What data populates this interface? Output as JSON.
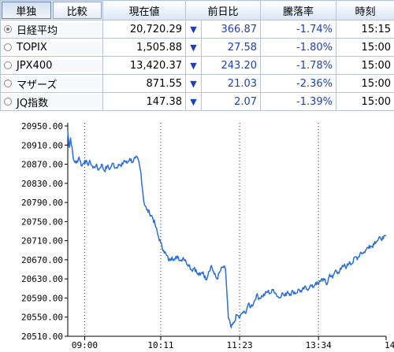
{
  "header": {
    "mode_single": "単独",
    "mode_compare": "比較",
    "col_price": "現在値",
    "col_change": "前日比",
    "col_pct": "騰落率",
    "col_time": "時刻"
  },
  "rows": [
    {
      "name": "日経平均",
      "price": "20,720.29",
      "change": "366.87",
      "pct": "-1.74%",
      "time": "15:15",
      "selected": true
    },
    {
      "name": "TOPIX",
      "price": "1,505.88",
      "change": "27.58",
      "pct": "-1.80%",
      "time": "15:00",
      "selected": false
    },
    {
      "name": "JPX400",
      "price": "13,420.37",
      "change": "243.20",
      "pct": "-1.78%",
      "time": "15:00",
      "selected": false
    },
    {
      "name": "マザーズ",
      "price": "871.55",
      "change": "21.03",
      "pct": "-2.36%",
      "time": "15:00",
      "selected": false
    },
    {
      "name": "JQ指数",
      "price": "147.38",
      "change": "2.07",
      "pct": "-1.39%",
      "time": "15:00",
      "selected": false
    }
  ],
  "down_arrow": "▼",
  "colors": {
    "line": "#2a6fd6",
    "grid": "#333333",
    "table_border": "#b9c3d6",
    "change_text": "#1d3fbf"
  },
  "chart_data": {
    "type": "line",
    "title": "",
    "ylim": [
      20510,
      20950
    ],
    "y_ticks": [
      "20950.00",
      "20910.00",
      "20870.00",
      "20830.00",
      "20790.00",
      "20750.00",
      "20710.00",
      "20670.00",
      "20630.00",
      "20590.00",
      "20550.00",
      "20510.00"
    ],
    "x_ticks": [
      "09:00",
      "10:11",
      "11:23",
      "13:34",
      "14:"
    ],
    "series": [
      {
        "values": [
          [
            0.0,
            20940
          ],
          [
            0.5,
            20905
          ],
          [
            1,
            20925
          ],
          [
            2,
            20880
          ],
          [
            3,
            20872
          ],
          [
            4,
            20885
          ],
          [
            5,
            20866
          ],
          [
            6,
            20878
          ],
          [
            7,
            20870
          ],
          [
            8,
            20875
          ],
          [
            9,
            20862
          ],
          [
            10,
            20868
          ],
          [
            11,
            20858
          ],
          [
            12,
            20870
          ],
          [
            13,
            20856
          ],
          [
            14,
            20866
          ],
          [
            15,
            20860
          ],
          [
            16,
            20872
          ],
          [
            17,
            20862
          ],
          [
            18,
            20870
          ],
          [
            19,
            20865
          ],
          [
            20,
            20878
          ],
          [
            21,
            20872
          ],
          [
            22,
            20882
          ],
          [
            23,
            20875
          ],
          [
            24,
            20883
          ],
          [
            25,
            20880
          ],
          [
            26,
            20850
          ],
          [
            27,
            20792
          ],
          [
            28,
            20775
          ],
          [
            29,
            20768
          ],
          [
            30,
            20760
          ],
          [
            31,
            20744
          ],
          [
            32,
            20722
          ],
          [
            33,
            20705
          ],
          [
            34,
            20690
          ],
          [
            35,
            20680
          ],
          [
            36,
            20668
          ],
          [
            37,
            20676
          ],
          [
            38,
            20670
          ],
          [
            39,
            20678
          ],
          [
            40,
            20668
          ],
          [
            41,
            20675
          ],
          [
            42,
            20665
          ],
          [
            43,
            20660
          ],
          [
            44,
            20648
          ],
          [
            45,
            20654
          ],
          [
            46,
            20640
          ],
          [
            47,
            20638
          ],
          [
            48,
            20645
          ],
          [
            49,
            20628
          ],
          [
            50,
            20645
          ],
          [
            51,
            20658
          ],
          [
            52,
            20640
          ],
          [
            53,
            20630
          ],
          [
            54,
            20645
          ],
          [
            55,
            20655
          ],
          [
            56,
            20650
          ],
          [
            57,
            20548
          ],
          [
            58,
            20528
          ],
          [
            59,
            20538
          ],
          [
            60,
            20555
          ],
          [
            61,
            20548
          ],
          [
            62,
            20560
          ],
          [
            63,
            20558
          ],
          [
            64,
            20576
          ],
          [
            65,
            20572
          ],
          [
            66,
            20580
          ],
          [
            67,
            20596
          ],
          [
            68,
            20590
          ],
          [
            69,
            20594
          ],
          [
            70,
            20598
          ],
          [
            71,
            20604
          ],
          [
            72,
            20600
          ],
          [
            73,
            20608
          ],
          [
            74,
            20598
          ],
          [
            75,
            20590
          ],
          [
            76,
            20600
          ],
          [
            77,
            20594
          ],
          [
            78,
            20604
          ],
          [
            79,
            20598
          ],
          [
            80,
            20604
          ],
          [
            81,
            20600
          ],
          [
            82,
            20608
          ],
          [
            83,
            20603
          ],
          [
            84,
            20612
          ],
          [
            85,
            20608
          ],
          [
            86,
            20616
          ],
          [
            87,
            20612
          ],
          [
            88,
            20622
          ],
          [
            89,
            20618
          ],
          [
            90,
            20630
          ],
          [
            91,
            20628
          ],
          [
            92,
            20618
          ],
          [
            93,
            20640
          ],
          [
            94,
            20632
          ],
          [
            95,
            20648
          ],
          [
            96,
            20644
          ],
          [
            97,
            20650
          ],
          [
            98,
            20658
          ],
          [
            99,
            20655
          ],
          [
            100,
            20666
          ],
          [
            101,
            20662
          ],
          [
            102,
            20676
          ],
          [
            103,
            20674
          ],
          [
            104,
            20686
          ],
          [
            105,
            20684
          ],
          [
            106,
            20692
          ],
          [
            107,
            20700
          ],
          [
            108,
            20698
          ],
          [
            109,
            20708
          ],
          [
            110,
            20710
          ],
          [
            111,
            20716
          ],
          [
            112,
            20714
          ],
          [
            113,
            20720
          ]
        ]
      }
    ]
  }
}
